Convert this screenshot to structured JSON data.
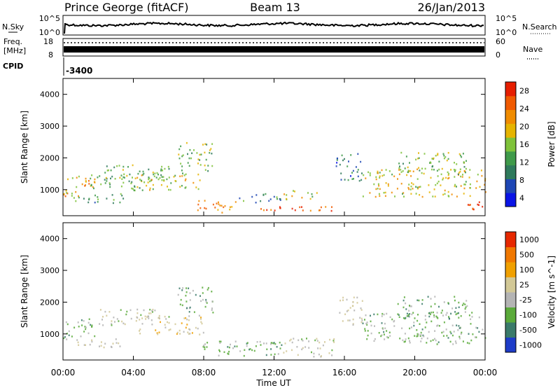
{
  "header": {
    "station": "Prince George (fitACF)",
    "beam": "Beam 13",
    "date": "26/Jan/2013"
  },
  "top_panels": {
    "nsky": {
      "label": "N.Sky",
      "tick_top": "10^5",
      "tick_bottom": "10^0",
      "right_label": "N.Search",
      "right_tick_top": "10^5",
      "right_tick_bottom": "10^0"
    },
    "freq": {
      "label_line1": "Freq.",
      "label_line2": "[MHz]",
      "tick_top": "18",
      "tick_bottom": "8",
      "right_label": "Nave",
      "right_tick_top": "60",
      "right_tick_bottom": "0"
    },
    "cpid": {
      "label": "CPID",
      "value": "-3400"
    }
  },
  "time_axis": {
    "label": "Time UT",
    "ticks": [
      "00:00",
      "04:00",
      "08:00",
      "12:00",
      "16:00",
      "20:00",
      "00:00"
    ]
  },
  "colors": {
    "power_scale": [
      "#0a14e6",
      "#1e46b4",
      "#2f7a5c",
      "#3f9a4a",
      "#7fc23a",
      "#e6b400",
      "#f08c00",
      "#f05a00",
      "#e61e00"
    ],
    "velocity_scale": [
      "#1e3cc8",
      "#3a7a6a",
      "#5aaa3a",
      "#b4b4b4",
      "#d2c896",
      "#f0a000",
      "#f07800",
      "#e62800"
    ]
  },
  "chart_data": [
    {
      "type": "heatmap",
      "panel": "power",
      "ylabel": "Slant Range [km]",
      "xlim": [
        0,
        24
      ],
      "ylim": [
        180,
        4500
      ],
      "yticks": [
        1000,
        2000,
        3000,
        4000
      ],
      "colorbar": {
        "label": "Power [dB]",
        "ticks": [
          "28",
          "24",
          "20",
          "16",
          "12",
          "8",
          "4"
        ],
        "range": [
          0,
          30
        ]
      },
      "scatter_regions": [
        {
          "t": [
            0.0,
            1.8
          ],
          "r": [
            800,
            1500
          ],
          "level": 20
        },
        {
          "t": [
            0.5,
            3.5
          ],
          "r": [
            600,
            900
          ],
          "level": 10
        },
        {
          "t": [
            1.5,
            4.5
          ],
          "r": [
            1000,
            1500
          ],
          "level": 14
        },
        {
          "t": [
            2.0,
            6.0
          ],
          "r": [
            1300,
            1800
          ],
          "level": 12
        },
        {
          "t": [
            4.0,
            8.0
          ],
          "r": [
            1000,
            1600
          ],
          "level": 16
        },
        {
          "t": [
            6.5,
            8.5
          ],
          "r": [
            1600,
            2500
          ],
          "level": 14
        },
        {
          "t": [
            7.5,
            10.0
          ],
          "r": [
            300,
            700
          ],
          "level": 22
        },
        {
          "t": [
            10.0,
            12.5
          ],
          "r": [
            600,
            900
          ],
          "level": 10
        },
        {
          "t": [
            11.0,
            15.5
          ],
          "r": [
            300,
            500
          ],
          "level": 26
        },
        {
          "t": [
            12.5,
            14.5
          ],
          "r": [
            700,
            1000
          ],
          "level": 18
        },
        {
          "t": [
            15.5,
            17.0
          ],
          "r": [
            1300,
            2200
          ],
          "level": 8
        },
        {
          "t": [
            17.0,
            24.0
          ],
          "r": [
            800,
            1700
          ],
          "level": 18
        },
        {
          "t": [
            19.0,
            23.0
          ],
          "r": [
            1500,
            2200
          ],
          "level": 14
        },
        {
          "t": [
            22.5,
            24.0
          ],
          "r": [
            400,
            700
          ],
          "level": 28
        }
      ]
    },
    {
      "type": "heatmap",
      "panel": "velocity",
      "ylabel": "Slant Range [km]",
      "xlim": [
        0,
        24
      ],
      "ylim": [
        180,
        4500
      ],
      "yticks": [
        1000,
        2000,
        3000,
        4000
      ],
      "colorbar": {
        "label": "Velocity [m s^-1]",
        "ticks": [
          "1000",
          "500",
          "100",
          "25",
          "-25",
          "-100",
          "-500",
          "-1000"
        ],
        "range": [
          -1000,
          1000
        ]
      },
      "scatter_regions": [
        {
          "t": [
            0.0,
            1.8
          ],
          "r": [
            800,
            1500
          ],
          "level": -300
        },
        {
          "t": [
            0.5,
            3.5
          ],
          "r": [
            600,
            900
          ],
          "level": 0
        },
        {
          "t": [
            2.0,
            6.0
          ],
          "r": [
            1300,
            1800
          ],
          "level": -100
        },
        {
          "t": [
            4.0,
            8.0
          ],
          "r": [
            1000,
            1600
          ],
          "level": 100
        },
        {
          "t": [
            6.5,
            8.5
          ],
          "r": [
            1600,
            2500
          ],
          "level": -400
        },
        {
          "t": [
            7.5,
            12.5
          ],
          "r": [
            300,
            800
          ],
          "level": -300
        },
        {
          "t": [
            12.5,
            15.5
          ],
          "r": [
            300,
            900
          ],
          "level": -50
        },
        {
          "t": [
            15.5,
            17.0
          ],
          "r": [
            1300,
            2200
          ],
          "level": 0
        },
        {
          "t": [
            17.0,
            24.0
          ],
          "r": [
            700,
            1700
          ],
          "level": -300
        },
        {
          "t": [
            19.0,
            23.0
          ],
          "r": [
            1500,
            2200
          ],
          "level": -400
        }
      ]
    }
  ]
}
